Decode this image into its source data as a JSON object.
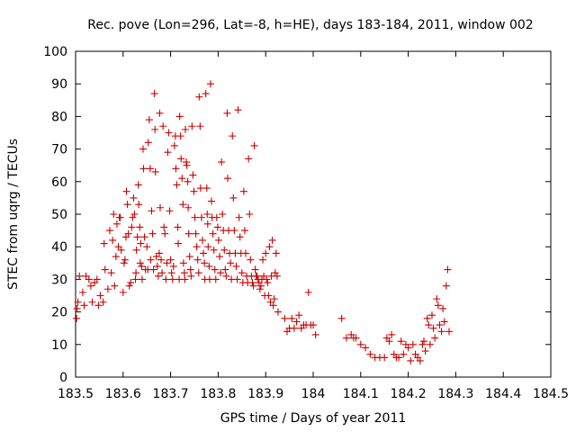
{
  "chart_data": {
    "type": "scatter",
    "title": "Rec. pove (Lon=296, Lat=-8, h=HE), days 183-184, 2011, window 002",
    "xlabel": "GPS time / Days of year 2011",
    "ylabel": "STEC from uqrg / TECUs",
    "xlim": [
      183.5,
      184.5
    ],
    "ylim": [
      0,
      100
    ],
    "xticks": [
      183.5,
      183.6,
      183.7,
      183.8,
      183.9,
      184.0,
      184.1,
      184.2,
      184.3,
      184.4,
      184.5
    ],
    "xtick_labels": [
      "183.5",
      "183.6",
      "183.7",
      "183.8",
      "183.9",
      "184",
      "184.1",
      "184.2",
      "184.3",
      "184.4",
      "184.5"
    ],
    "yticks": [
      0,
      10,
      20,
      30,
      40,
      50,
      60,
      70,
      80,
      90,
      100
    ],
    "ytick_labels": [
      "0",
      "10",
      "20",
      "30",
      "40",
      "50",
      "60",
      "70",
      "80",
      "90",
      "100"
    ],
    "marker": "+",
    "color": "#cc0000",
    "grid": false,
    "series": [
      {
        "name": "STEC",
        "points": [
          [
            183.502,
            18
          ],
          [
            183.503,
            21
          ],
          [
            183.505,
            23
          ],
          [
            183.508,
            31
          ],
          [
            183.515,
            26
          ],
          [
            183.518,
            22
          ],
          [
            183.522,
            31
          ],
          [
            183.528,
            30
          ],
          [
            183.532,
            28
          ],
          [
            183.535,
            23
          ],
          [
            183.54,
            29
          ],
          [
            183.545,
            30
          ],
          [
            183.548,
            22
          ],
          [
            183.552,
            25
          ],
          [
            183.558,
            23
          ],
          [
            183.56,
            41
          ],
          [
            183.562,
            33
          ],
          [
            183.568,
            27
          ],
          [
            183.572,
            45
          ],
          [
            183.575,
            32
          ],
          [
            183.578,
            42
          ],
          [
            183.58,
            50
          ],
          [
            183.582,
            28
          ],
          [
            183.585,
            37
          ],
          [
            183.587,
            47
          ],
          [
            183.59,
            40
          ],
          [
            183.592,
            49
          ],
          [
            183.594,
            49
          ],
          [
            183.596,
            39
          ],
          [
            183.6,
            26
          ],
          [
            183.602,
            35
          ],
          [
            183.604,
            36
          ],
          [
            183.606,
            43
          ],
          [
            183.607,
            57
          ],
          [
            183.609,
            53
          ],
          [
            183.611,
            44
          ],
          [
            183.613,
            28
          ],
          [
            183.616,
            29
          ],
          [
            183.618,
            46
          ],
          [
            183.62,
            49
          ],
          [
            183.622,
            55
          ],
          [
            183.624,
            50
          ],
          [
            183.626,
            30
          ],
          [
            183.627,
            32
          ],
          [
            183.628,
            39
          ],
          [
            183.63,
            43
          ],
          [
            183.632,
            59
          ],
          [
            183.633,
            53
          ],
          [
            183.635,
            46
          ],
          [
            183.636,
            35
          ],
          [
            183.637,
            41
          ],
          [
            183.639,
            34
          ],
          [
            183.64,
            30
          ],
          [
            183.642,
            70
          ],
          [
            183.643,
            64
          ],
          [
            183.645,
            43
          ],
          [
            183.647,
            33
          ],
          [
            183.65,
            40
          ],
          [
            183.652,
            33
          ],
          [
            183.653,
            72
          ],
          [
            183.655,
            79
          ],
          [
            183.657,
            64
          ],
          [
            183.658,
            36
          ],
          [
            183.66,
            51
          ],
          [
            183.662,
            44
          ],
          [
            183.664,
            33
          ],
          [
            183.666,
            87
          ],
          [
            183.667,
            76
          ],
          [
            183.668,
            63
          ],
          [
            183.67,
            37
          ],
          [
            183.672,
            34
          ],
          [
            183.674,
            31
          ],
          [
            183.676,
            38
          ],
          [
            183.677,
            81
          ],
          [
            183.678,
            52
          ],
          [
            183.68,
            36
          ],
          [
            183.682,
            32
          ],
          [
            183.684,
            77
          ],
          [
            183.686,
            46
          ],
          [
            183.688,
            44
          ],
          [
            183.69,
            30
          ],
          [
            183.692,
            35
          ],
          [
            183.694,
            69
          ],
          [
            183.696,
            75
          ],
          [
            183.698,
            51
          ],
          [
            183.7,
            36
          ],
          [
            183.702,
            32
          ],
          [
            183.704,
            30
          ],
          [
            183.706,
            34
          ],
          [
            183.708,
            71
          ],
          [
            183.71,
            74
          ],
          [
            183.711,
            64
          ],
          [
            183.713,
            59
          ],
          [
            183.715,
            46
          ],
          [
            183.716,
            41
          ],
          [
            183.718,
            30
          ],
          [
            183.719,
            80
          ],
          [
            183.721,
            74
          ],
          [
            183.722,
            67
          ],
          [
            183.724,
            61
          ],
          [
            183.726,
            53
          ],
          [
            183.727,
            35
          ],
          [
            183.729,
            32
          ],
          [
            183.73,
            30
          ],
          [
            183.731,
            76
          ],
          [
            183.733,
            66
          ],
          [
            183.734,
            65
          ],
          [
            183.736,
            60
          ],
          [
            183.737,
            52
          ],
          [
            183.738,
            44
          ],
          [
            183.74,
            37
          ],
          [
            183.742,
            33
          ],
          [
            183.743,
            31
          ],
          [
            183.745,
            77
          ],
          [
            183.747,
            62
          ],
          [
            183.749,
            57
          ],
          [
            183.751,
            49
          ],
          [
            183.753,
            44
          ],
          [
            183.755,
            40
          ],
          [
            183.757,
            36
          ],
          [
            183.759,
            32
          ],
          [
            183.76,
            86
          ],
          [
            183.762,
            77
          ],
          [
            183.763,
            58
          ],
          [
            183.765,
            49
          ],
          [
            183.767,
            42
          ],
          [
            183.769,
            38
          ],
          [
            183.771,
            35
          ],
          [
            183.772,
            30
          ],
          [
            183.774,
            87
          ],
          [
            183.776,
            58
          ],
          [
            183.777,
            50
          ],
          [
            183.778,
            47
          ],
          [
            183.779,
            40
          ],
          [
            183.781,
            34
          ],
          [
            183.782,
            30
          ],
          [
            183.784,
            90
          ],
          [
            183.786,
            54
          ],
          [
            183.787,
            49
          ],
          [
            183.789,
            44
          ],
          [
            183.791,
            39
          ],
          [
            183.793,
            33
          ],
          [
            183.795,
            30
          ],
          [
            183.797,
            49
          ],
          [
            183.799,
            46
          ],
          [
            183.801,
            42
          ],
          [
            183.803,
            37
          ],
          [
            183.805,
            32
          ],
          [
            183.807,
            66
          ],
          [
            183.809,
            50
          ],
          [
            183.811,
            45
          ],
          [
            183.813,
            39
          ],
          [
            183.815,
            33
          ],
          [
            183.817,
            31
          ],
          [
            183.819,
            81
          ],
          [
            183.82,
            61
          ],
          [
            183.822,
            45
          ],
          [
            183.824,
            38
          ],
          [
            183.826,
            35
          ],
          [
            183.828,
            30
          ],
          [
            183.83,
            74
          ],
          [
            183.832,
            55
          ],
          [
            183.834,
            45
          ],
          [
            183.836,
            38
          ],
          [
            183.838,
            34
          ],
          [
            183.84,
            30
          ],
          [
            183.842,
            82
          ],
          [
            183.844,
            49
          ],
          [
            183.846,
            43
          ],
          [
            183.848,
            38
          ],
          [
            183.85,
            32
          ],
          [
            183.852,
            29
          ],
          [
            183.854,
            57
          ],
          [
            183.856,
            45
          ],
          [
            183.858,
            38
          ],
          [
            183.86,
            31
          ],
          [
            183.862,
            29
          ],
          [
            183.864,
            67
          ],
          [
            183.866,
            50
          ],
          [
            183.868,
            36
          ],
          [
            183.87,
            31
          ],
          [
            183.872,
            29
          ],
          [
            183.874,
            28
          ],
          [
            183.876,
            71
          ],
          [
            183.878,
            33
          ],
          [
            183.88,
            31
          ],
          [
            183.882,
            31
          ],
          [
            183.884,
            30
          ],
          [
            183.886,
            29
          ],
          [
            183.888,
            27
          ],
          [
            183.89,
            28
          ],
          [
            183.892,
            30
          ],
          [
            183.894,
            36
          ],
          [
            183.896,
            31
          ],
          [
            183.898,
            25
          ],
          [
            183.9,
            38
          ],
          [
            183.902,
            30
          ],
          [
            183.904,
            29
          ],
          [
            183.906,
            25
          ],
          [
            183.908,
            40
          ],
          [
            183.91,
            23
          ],
          [
            183.912,
            31
          ],
          [
            183.914,
            42
          ],
          [
            183.916,
            22
          ],
          [
            183.918,
            24
          ],
          [
            183.92,
            32
          ],
          [
            183.922,
            38
          ],
          [
            183.924,
            31
          ],
          [
            183.926,
            20
          ],
          [
            183.94,
            18
          ],
          [
            183.945,
            14
          ],
          [
            183.95,
            15
          ],
          [
            183.955,
            18
          ],
          [
            183.96,
            15
          ],
          [
            183.965,
            17
          ],
          [
            183.97,
            19
          ],
          [
            183.975,
            15
          ],
          [
            183.98,
            16
          ],
          [
            183.985,
            16
          ],
          [
            183.99,
            26
          ],
          [
            183.995,
            16
          ],
          [
            184.0,
            16
          ],
          [
            184.005,
            13
          ],
          [
            184.06,
            18
          ],
          [
            184.07,
            12
          ],
          [
            184.08,
            13
          ],
          [
            184.085,
            12
          ],
          [
            184.09,
            12
          ],
          [
            184.1,
            10
          ],
          [
            184.11,
            9
          ],
          [
            184.12,
            7
          ],
          [
            184.13,
            6
          ],
          [
            184.14,
            6
          ],
          [
            184.15,
            6
          ],
          [
            184.155,
            12
          ],
          [
            184.16,
            11
          ],
          [
            184.165,
            13
          ],
          [
            184.17,
            7
          ],
          [
            184.175,
            6
          ],
          [
            184.18,
            6
          ],
          [
            184.185,
            11
          ],
          [
            184.19,
            7
          ],
          [
            184.195,
            10
          ],
          [
            184.2,
            9
          ],
          [
            184.205,
            5
          ],
          [
            184.21,
            10
          ],
          [
            184.215,
            7
          ],
          [
            184.22,
            6
          ],
          [
            184.225,
            5
          ],
          [
            184.23,
            10
          ],
          [
            184.233,
            11
          ],
          [
            184.236,
            8
          ],
          [
            184.24,
            18
          ],
          [
            184.243,
            16
          ],
          [
            184.246,
            10
          ],
          [
            184.25,
            19
          ],
          [
            184.253,
            15
          ],
          [
            184.256,
            12
          ],
          [
            184.26,
            24
          ],
          [
            184.263,
            22
          ],
          [
            184.266,
            16
          ],
          [
            184.27,
            14
          ],
          [
            184.273,
            21
          ],
          [
            184.276,
            17
          ],
          [
            184.28,
            28
          ],
          [
            184.283,
            33
          ],
          [
            184.286,
            14
          ]
        ]
      }
    ]
  }
}
